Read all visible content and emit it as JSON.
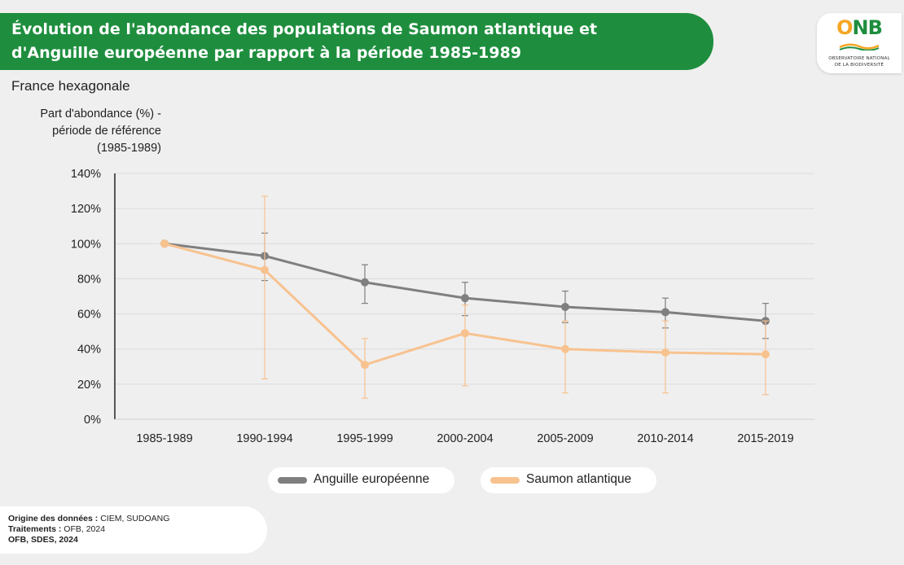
{
  "title": {
    "line1": "Évolution de l'abondance des populations de Saumon atlantique et",
    "line2": "d'Anguille européenne par rapport à la période 1985-1989"
  },
  "logo": {
    "text": "ONB",
    "sub1": "OBSERVATOIRE NATIONAL",
    "sub2": "DE LA BIODIVERSITÉ"
  },
  "subtitle": "France hexagonale",
  "ylabel": {
    "line1": "Part d'abondance (%) -",
    "line2": "période de référence",
    "line3": "(1985-1989)"
  },
  "legend": {
    "eel": "Anguille européenne",
    "salmon": "Saumon atlantique"
  },
  "source": {
    "line1_label": "Origine des données :",
    "line1_value": "CIEM, SUDOANG",
    "line2_label": "Traitements :",
    "line2_value": "OFB, 2024",
    "line3": "OFB, SDES, 2024"
  },
  "colors": {
    "banner": "#1e8e3e",
    "eel": "#7f7f7f",
    "salmon": "#f8c28f",
    "logo_o": "#f5a623",
    "logo_nb": "#1e8e3e"
  },
  "chart_data": {
    "type": "line",
    "categories": [
      "1985-1989",
      "1990-1994",
      "1995-1999",
      "2000-2004",
      "2005-2009",
      "2010-2014",
      "2015-2019"
    ],
    "yticks": [
      "0%",
      "20%",
      "40%",
      "60%",
      "80%",
      "100%",
      "120%",
      "140%"
    ],
    "ylim": [
      0,
      140
    ],
    "grid": true,
    "legend_position": "bottom",
    "series": [
      {
        "name": "Anguille européenne",
        "values": [
          100,
          93,
          78,
          69,
          64,
          61,
          56
        ],
        "err_low": [
          100,
          79,
          66,
          59,
          55,
          52,
          46
        ],
        "err_high": [
          100,
          106,
          88,
          78,
          73,
          69,
          66
        ]
      },
      {
        "name": "Saumon atlantique",
        "values": [
          100,
          85,
          31,
          49,
          40,
          38,
          37
        ],
        "err_low": [
          100,
          23,
          12,
          19,
          15,
          15,
          14
        ],
        "err_high": [
          100,
          127,
          46,
          65,
          56,
          56,
          56
        ]
      }
    ]
  }
}
